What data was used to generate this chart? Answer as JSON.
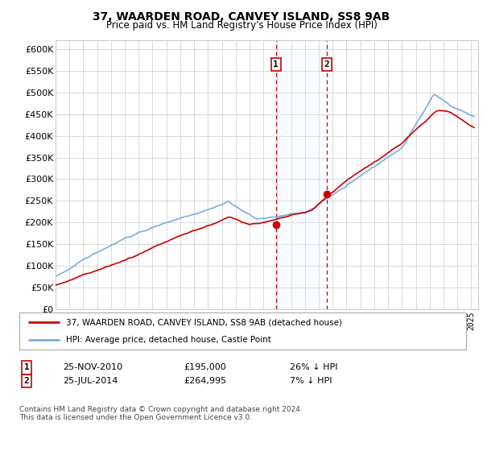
{
  "title": "37, WAARDEN ROAD, CANVEY ISLAND, SS8 9AB",
  "subtitle": "Price paid vs. HM Land Registry's House Price Index (HPI)",
  "ylabel_ticks": [
    "£0",
    "£50K",
    "£100K",
    "£150K",
    "£200K",
    "£250K",
    "£300K",
    "£350K",
    "£400K",
    "£450K",
    "£500K",
    "£550K",
    "£600K"
  ],
  "ylim": [
    0,
    620000
  ],
  "ytick_vals": [
    0,
    50000,
    100000,
    150000,
    200000,
    250000,
    300000,
    350000,
    400000,
    450000,
    500000,
    550000,
    600000
  ],
  "sale1_date": 2010.9,
  "sale1_price": 195000,
  "sale1_label": "1",
  "sale2_date": 2014.56,
  "sale2_price": 264995,
  "sale2_label": "2",
  "legend_line1": "37, WAARDEN ROAD, CANVEY ISLAND, SS8 9AB (detached house)",
  "legend_line2": "HPI: Average price, detached house, Castle Point",
  "table_row1": [
    "1",
    "25-NOV-2010",
    "£195,000",
    "26% ↓ HPI"
  ],
  "table_row2": [
    "2",
    "25-JUL-2014",
    "£264,995",
    "7% ↓ HPI"
  ],
  "footer": "Contains HM Land Registry data © Crown copyright and database right 2024.\nThis data is licensed under the Open Government Licence v3.0.",
  "hpi_color": "#7aade0",
  "price_color": "#cc0000",
  "sale_marker_color": "#cc0000",
  "shade_color": "#ddeeff",
  "dashed_line_color": "#cc0000",
  "background_color": "#ffffff",
  "grid_color": "#cccccc"
}
